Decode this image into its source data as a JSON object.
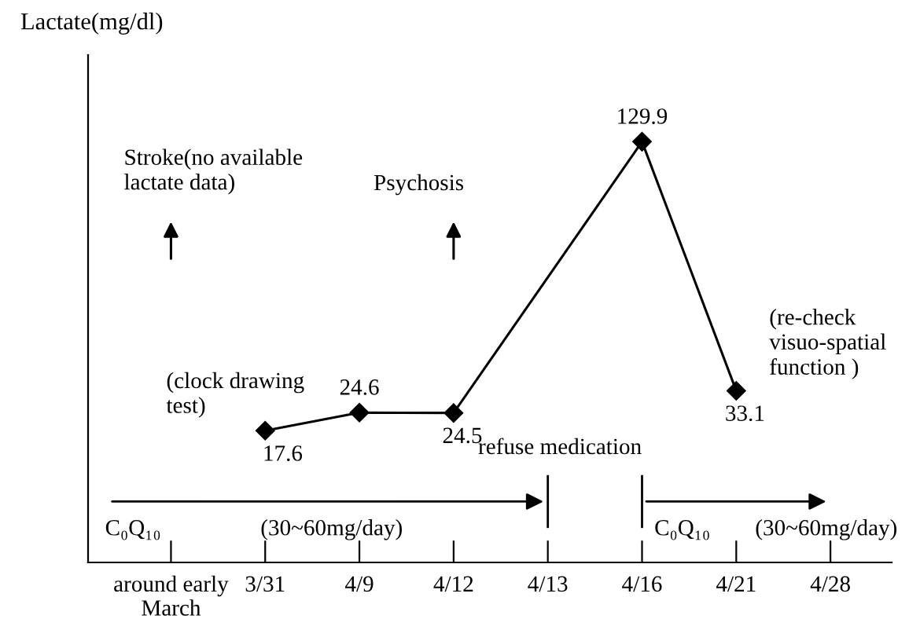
{
  "chart_data": {
    "type": "line",
    "ylabel": "Lactate(mg/dl)",
    "categories": [
      "around early\nMarch",
      "3/31",
      "4/9",
      "4/12",
      "4/13",
      "4/16",
      "4/21",
      "4/28"
    ],
    "values": [
      null,
      17.6,
      24.6,
      24.5,
      null,
      129.9,
      33.1,
      null
    ],
    "color": "#000000",
    "marker": "diamond",
    "line_style": "solid",
    "data_labels": true,
    "tick_labels": "x",
    "grid": false,
    "annotations": [
      "Stroke(no available\nlactate data)",
      "Psychosis",
      "(clock drawing\ntest)",
      "(re-check\nvisuo-spatial\nfunction )",
      "refuse medication",
      "C₀Q₁₀",
      "(30~60mg/day)",
      "C₀Q₁₀",
      "(30~60mg/day)"
    ]
  }
}
